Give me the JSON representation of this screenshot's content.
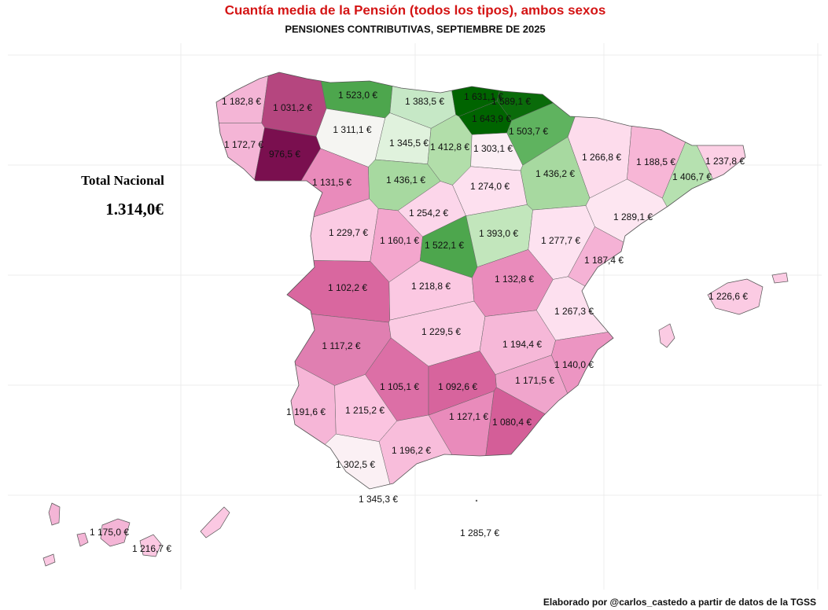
{
  "title": "Cuantía media de la Pensión (todos los tipos), ambos sexos",
  "subtitle": "PENSIONES CONTRIBUTIVAS, SEPTIEMBRE DE 2025",
  "total": {
    "label": "Total Nacional",
    "value": "1.314,0€"
  },
  "provinces": [
    {
      "label": "1 182,8 €",
      "color": "#f4b5d6"
    },
    {
      "label": "1 031,2 €",
      "color": "#b5467f"
    },
    {
      "label": "1 523,0 €",
      "color": "#4da64d"
    },
    {
      "label": "1 383,5 €",
      "color": "#c6e8c6"
    },
    {
      "label": "1 631,1 €",
      "color": "#006400"
    },
    {
      "label": "1 589,1 €",
      "color": "#0a6b0a"
    },
    {
      "label": "1 643,9 €",
      "color": "#006400"
    },
    {
      "label": "1 311,1 €",
      "color": "#f5f5f2"
    },
    {
      "label": "1 172,7 €",
      "color": "#f4b5d6"
    },
    {
      "label": "976,5 €",
      "color": "#7a0f4f"
    },
    {
      "label": "1 345,5 €",
      "color": "#e0f2dd"
    },
    {
      "label": "1 412,8 €",
      "color": "#b2deaa"
    },
    {
      "label": "1 303,1 €",
      "color": "#fbeef4"
    },
    {
      "label": "1 503,7 €",
      "color": "#5fb35f"
    },
    {
      "label": "1 266,8 €",
      "color": "#fddcec"
    },
    {
      "label": "1 188,5 €",
      "color": "#f7b6d6"
    },
    {
      "label": "1 237,8 €",
      "color": "#fcd0e5"
    },
    {
      "label": "1 131,5 €",
      "color": "#e98bbb"
    },
    {
      "label": "1 436,1 €",
      "color": "#a7d9a0"
    },
    {
      "label": "1 274,0 €",
      "color": "#fde0ef"
    },
    {
      "label": "1 436,2 €",
      "color": "#a7d9a0"
    },
    {
      "label": "1 406,7 €",
      "color": "#b6e1b0"
    },
    {
      "label": "1 254,2 €",
      "color": "#fcd6ea"
    },
    {
      "label": "1 289,1 €",
      "color": "#fde6f1"
    },
    {
      "label": "1 229,7 €",
      "color": "#fbcbe3"
    },
    {
      "label": "1 160,1 €",
      "color": "#f3a6cd"
    },
    {
      "label": "1 522,1 €",
      "color": "#4da64d"
    },
    {
      "label": "1 393,0 €",
      "color": "#c2e6bc"
    },
    {
      "label": "1 277,7 €",
      "color": "#fde2f0"
    },
    {
      "label": "1 187,4 €",
      "color": "#f5b2d5"
    },
    {
      "label": "1 102,2 €",
      "color": "#d9679f"
    },
    {
      "label": "1 218,8 €",
      "color": "#fbc8e2"
    },
    {
      "label": "1 132,8 €",
      "color": "#e98bbb"
    },
    {
      "label": "1 226,6 €",
      "color": "#fbcbe3"
    },
    {
      "label": "1 267,3 €",
      "color": "#fde0ef"
    },
    {
      "label": "1 117,2 €",
      "color": "#e07fb1"
    },
    {
      "label": "1 229,5 €",
      "color": "#fbcbe3"
    },
    {
      "label": "1 194,4 €",
      "color": "#f6b8d8"
    },
    {
      "label": "1 140,0 €",
      "color": "#ec95c2"
    },
    {
      "label": "1 171,5 €",
      "color": "#f0a5cc"
    },
    {
      "label": "1 105,1 €",
      "color": "#dc6fa6"
    },
    {
      "label": "1 092,6 €",
      "color": "#d7649d"
    },
    {
      "label": "1 191,6 €",
      "color": "#f6b6d7"
    },
    {
      "label": "1 215,2 €",
      "color": "#fbc4e0"
    },
    {
      "label": "1 127,1 €",
      "color": "#e98bbb"
    },
    {
      "label": "1 080,4 €",
      "color": "#d45e98"
    },
    {
      "label": "1 196,2 €",
      "color": "#f8bddb"
    },
    {
      "label": "1 302,5 €",
      "color": "#fbf0f4"
    },
    {
      "label": "1 345,3 €",
      "color": "#f8f8f8"
    },
    {
      "label": "1 285,7 €",
      "color": "#f8f8f8"
    },
    {
      "label": "1 175,0 €",
      "color": "#f4b5d6"
    },
    {
      "label": "1 216,7 €",
      "color": "#fbc8e2"
    }
  ],
  "credit": "Elaborado por @carlos_castedo a partir de datos de la TGSS"
}
